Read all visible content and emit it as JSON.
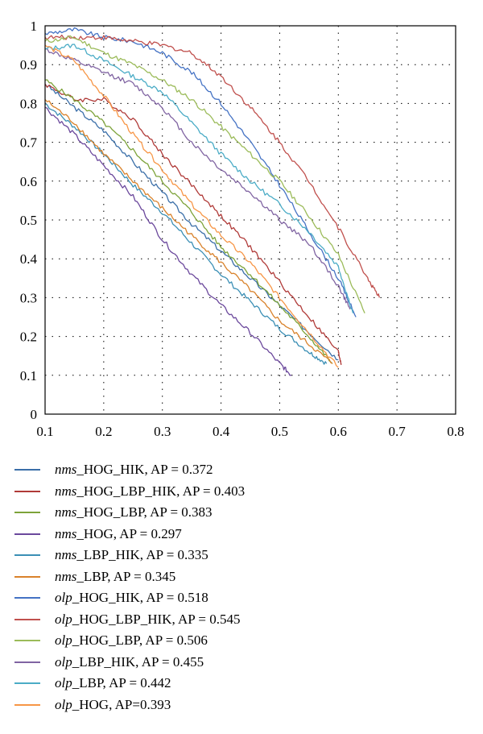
{
  "chart_data": {
    "type": "line",
    "xlim": [
      0.1,
      0.8
    ],
    "ylim": [
      0,
      1
    ],
    "x_ticks": [
      "0.1",
      "0.2",
      "0.3",
      "0.4",
      "0.5",
      "0.6",
      "0.7",
      "0.8"
    ],
    "y_ticks": [
      "0",
      "0.1",
      "0.2",
      "0.3",
      "0.4",
      "0.5",
      "0.6",
      "0.7",
      "0.8",
      "0.9",
      "1"
    ],
    "grid": "dotted",
    "legend_position": "bottom",
    "series": [
      {
        "prefix": "nms",
        "name": "_HOG_HIK, AP = 0.372",
        "color": "#3A6EA8",
        "points": [
          [
            0.1,
            0.85
          ],
          [
            0.15,
            0.79
          ],
          [
            0.2,
            0.73
          ],
          [
            0.25,
            0.65
          ],
          [
            0.3,
            0.57
          ],
          [
            0.35,
            0.49
          ],
          [
            0.4,
            0.42
          ],
          [
            0.45,
            0.35
          ],
          [
            0.5,
            0.28
          ],
          [
            0.55,
            0.21
          ],
          [
            0.6,
            0.14
          ]
        ]
      },
      {
        "prefix": "nms",
        "name": "_HOG_LBP_HIK, AP = 0.403",
        "color": "#B03A38",
        "points": [
          [
            0.1,
            0.85
          ],
          [
            0.15,
            0.81
          ],
          [
            0.2,
            0.81
          ],
          [
            0.25,
            0.76
          ],
          [
            0.3,
            0.67
          ],
          [
            0.35,
            0.59
          ],
          [
            0.4,
            0.51
          ],
          [
            0.45,
            0.43
          ],
          [
            0.5,
            0.34
          ],
          [
            0.55,
            0.25
          ],
          [
            0.6,
            0.16
          ],
          [
            0.605,
            0.13
          ]
        ]
      },
      {
        "prefix": "nms",
        "name": "_HOG_LBP, AP = 0.383",
        "color": "#7DA33A",
        "points": [
          [
            0.1,
            0.86
          ],
          [
            0.15,
            0.81
          ],
          [
            0.2,
            0.75
          ],
          [
            0.25,
            0.68
          ],
          [
            0.3,
            0.6
          ],
          [
            0.35,
            0.52
          ],
          [
            0.4,
            0.43
          ],
          [
            0.45,
            0.36
          ],
          [
            0.5,
            0.28
          ],
          [
            0.55,
            0.2
          ],
          [
            0.59,
            0.13
          ]
        ]
      },
      {
        "prefix": "nms",
        "name": "_HOG, AP = 0.297",
        "color": "#6B489C",
        "points": [
          [
            0.1,
            0.79
          ],
          [
            0.15,
            0.72
          ],
          [
            0.2,
            0.64
          ],
          [
            0.25,
            0.56
          ],
          [
            0.3,
            0.45
          ],
          [
            0.35,
            0.36
          ],
          [
            0.4,
            0.28
          ],
          [
            0.45,
            0.21
          ],
          [
            0.5,
            0.13
          ],
          [
            0.52,
            0.1
          ]
        ]
      },
      {
        "prefix": "nms",
        "name": "_LBP_HIK, AP = 0.335",
        "color": "#3B8FB5",
        "points": [
          [
            0.1,
            0.8
          ],
          [
            0.15,
            0.74
          ],
          [
            0.2,
            0.67
          ],
          [
            0.25,
            0.59
          ],
          [
            0.3,
            0.52
          ],
          [
            0.35,
            0.44
          ],
          [
            0.4,
            0.36
          ],
          [
            0.45,
            0.29
          ],
          [
            0.5,
            0.22
          ],
          [
            0.55,
            0.16
          ],
          [
            0.58,
            0.13
          ]
        ]
      },
      {
        "prefix": "nms",
        "name": "_LBP, AP = 0.345",
        "color": "#D9822B",
        "points": [
          [
            0.1,
            0.81
          ],
          [
            0.15,
            0.75
          ],
          [
            0.2,
            0.67
          ],
          [
            0.25,
            0.6
          ],
          [
            0.3,
            0.53
          ],
          [
            0.35,
            0.46
          ],
          [
            0.4,
            0.39
          ],
          [
            0.45,
            0.32
          ],
          [
            0.5,
            0.24
          ],
          [
            0.55,
            0.18
          ],
          [
            0.59,
            0.13
          ]
        ]
      },
      {
        "prefix": "olp",
        "name": "_HOG_HIK, AP = 0.518",
        "color": "#4472C4",
        "points": [
          [
            0.1,
            0.98
          ],
          [
            0.15,
            0.99
          ],
          [
            0.2,
            0.97
          ],
          [
            0.25,
            0.96
          ],
          [
            0.3,
            0.93
          ],
          [
            0.35,
            0.88
          ],
          [
            0.4,
            0.8
          ],
          [
            0.45,
            0.7
          ],
          [
            0.5,
            0.59
          ],
          [
            0.55,
            0.47
          ],
          [
            0.6,
            0.35
          ],
          [
            0.63,
            0.25
          ]
        ]
      },
      {
        "prefix": "olp",
        "name": "_HOG_LBP_HIK, AP = 0.545",
        "color": "#C0504D",
        "points": [
          [
            0.1,
            0.97
          ],
          [
            0.15,
            0.97
          ],
          [
            0.2,
            0.97
          ],
          [
            0.25,
            0.96
          ],
          [
            0.3,
            0.95
          ],
          [
            0.35,
            0.93
          ],
          [
            0.4,
            0.87
          ],
          [
            0.45,
            0.79
          ],
          [
            0.5,
            0.7
          ],
          [
            0.55,
            0.6
          ],
          [
            0.6,
            0.48
          ],
          [
            0.65,
            0.35
          ],
          [
            0.67,
            0.3
          ]
        ]
      },
      {
        "prefix": "olp",
        "name": "_HOG_LBP, AP = 0.506",
        "color": "#9BBB59",
        "points": [
          [
            0.1,
            0.96
          ],
          [
            0.15,
            0.97
          ],
          [
            0.2,
            0.93
          ],
          [
            0.25,
            0.9
          ],
          [
            0.3,
            0.86
          ],
          [
            0.35,
            0.81
          ],
          [
            0.4,
            0.74
          ],
          [
            0.45,
            0.67
          ],
          [
            0.5,
            0.6
          ],
          [
            0.55,
            0.51
          ],
          [
            0.6,
            0.41
          ],
          [
            0.645,
            0.26
          ]
        ]
      },
      {
        "prefix": "olp",
        "name": "_LBP_HIK, AP = 0.455",
        "color": "#8064A2",
        "points": [
          [
            0.1,
            0.94
          ],
          [
            0.15,
            0.91
          ],
          [
            0.2,
            0.88
          ],
          [
            0.25,
            0.85
          ],
          [
            0.3,
            0.79
          ],
          [
            0.35,
            0.7
          ],
          [
            0.4,
            0.63
          ],
          [
            0.45,
            0.57
          ],
          [
            0.5,
            0.5
          ],
          [
            0.55,
            0.44
          ],
          [
            0.6,
            0.33
          ],
          [
            0.62,
            0.27
          ]
        ]
      },
      {
        "prefix": "olp",
        "name": "_LBP, AP = 0.442",
        "color": "#4BACC6",
        "points": [
          [
            0.1,
            0.94
          ],
          [
            0.15,
            0.95
          ],
          [
            0.2,
            0.91
          ],
          [
            0.25,
            0.87
          ],
          [
            0.3,
            0.83
          ],
          [
            0.35,
            0.75
          ],
          [
            0.4,
            0.67
          ],
          [
            0.45,
            0.6
          ],
          [
            0.5,
            0.54
          ],
          [
            0.55,
            0.47
          ],
          [
            0.6,
            0.38
          ],
          [
            0.625,
            0.26
          ]
        ]
      },
      {
        "prefix": "olp",
        "name": "_HOG, AP=0.393",
        "color": "#F79646",
        "points": [
          [
            0.1,
            0.95
          ],
          [
            0.15,
            0.91
          ],
          [
            0.2,
            0.82
          ],
          [
            0.25,
            0.72
          ],
          [
            0.3,
            0.63
          ],
          [
            0.35,
            0.54
          ],
          [
            0.4,
            0.46
          ],
          [
            0.45,
            0.39
          ],
          [
            0.5,
            0.3
          ],
          [
            0.55,
            0.21
          ],
          [
            0.6,
            0.12
          ]
        ]
      }
    ]
  }
}
